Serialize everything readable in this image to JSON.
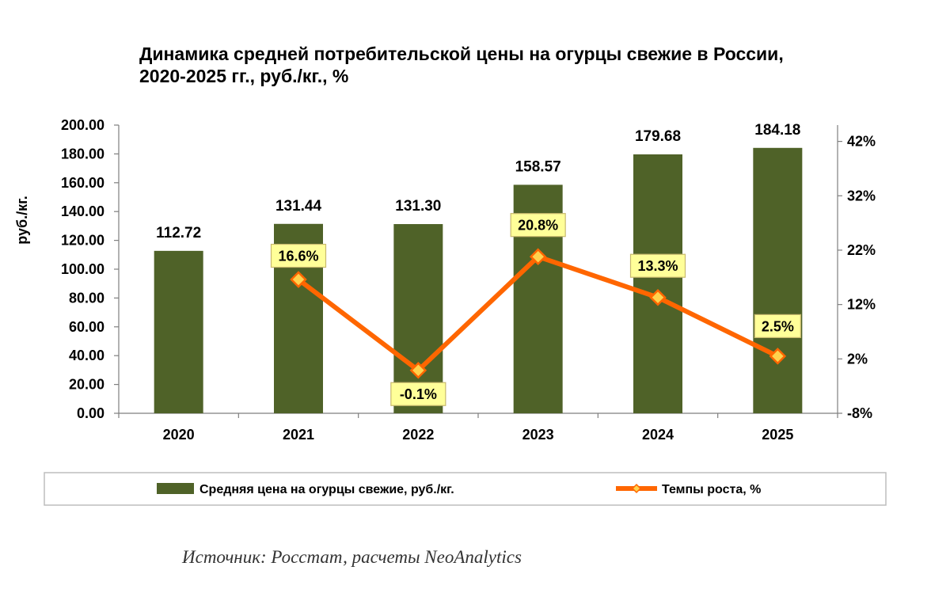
{
  "chart_data": {
    "type": "bar",
    "title_line1": "Динамика средней потребительской цены на огурцы свежие в России,",
    "title_line2": "2020-2025 гг., руб./кг., %",
    "ylabel": "руб./кг.",
    "categories": [
      "2020",
      "2021",
      "2022",
      "2023",
      "2024",
      "2025"
    ],
    "series": [
      {
        "name": "Средняя цена на огурцы свежие, руб./кг.",
        "kind": "bar",
        "axis": "left",
        "color": "#4F6228",
        "values": [
          112.72,
          131.44,
          131.3,
          158.57,
          179.68,
          184.18
        ],
        "labels": [
          "112.72",
          "131.44",
          "131.30",
          "158.57",
          "179.68",
          "184.18"
        ]
      },
      {
        "name": "Темпы роста, %",
        "kind": "line",
        "axis": "right",
        "color": "#FF6600",
        "marker_fill": "#FFD24D",
        "label_bg": "#FFFF99",
        "values": [
          null,
          16.6,
          -0.1,
          20.8,
          13.3,
          2.5
        ],
        "labels": [
          "",
          "16.6%",
          "-0.1%",
          "20.8%",
          "13.3%",
          "2.5%"
        ]
      }
    ],
    "y_left": {
      "min": 0,
      "max": 200,
      "ticks": [
        "200.00",
        "180.00",
        "160.00",
        "140.00",
        "120.00",
        "100.00",
        "80.00",
        "60.00",
        "40.00",
        "20.00",
        "0.00"
      ]
    },
    "y_right": {
      "min": -8,
      "max": 45,
      "ticks": [
        "42%",
        "32%",
        "22%",
        "12%",
        "2%",
        "-8%"
      ]
    },
    "grid": false,
    "legend_position": "bottom"
  },
  "source": "Источник: Росстат, расчеты NeoAnalytics"
}
